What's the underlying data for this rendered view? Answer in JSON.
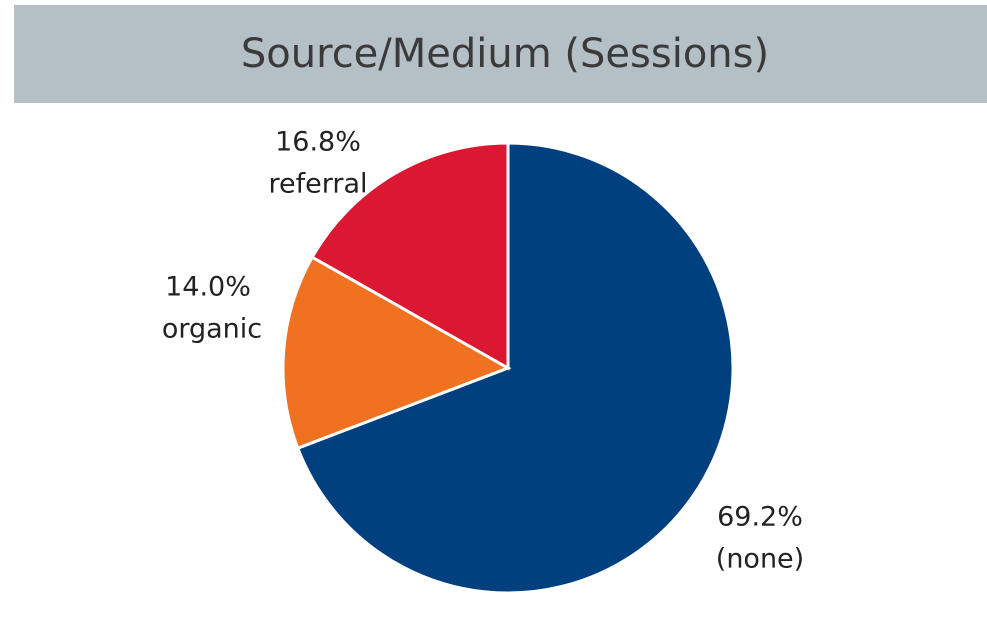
{
  "chart_data": {
    "type": "pie",
    "title": "Source/Medium (Sessions)",
    "categories": [
      "(none)",
      "organic",
      "referral"
    ],
    "values": [
      69.2,
      14.0,
      16.8
    ],
    "value_labels": [
      "69.2%",
      "14.0%",
      "16.8%"
    ],
    "colors": [
      "#00407f",
      "#f07120",
      "#dc1731"
    ]
  }
}
